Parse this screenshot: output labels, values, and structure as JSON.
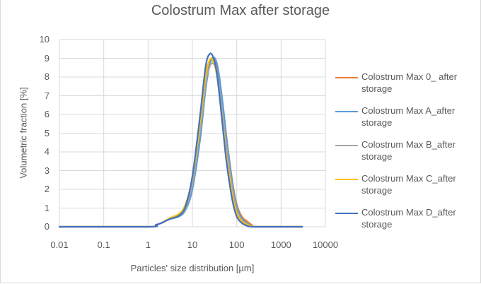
{
  "chart_data": {
    "type": "line",
    "title": "Colostrum Max after storage",
    "xlabel": "Particles' size distribution [µm]",
    "ylabel": "Volumetric fraction [%]",
    "xscale": "log",
    "xlim": [
      0.01,
      10000
    ],
    "ylim": [
      0,
      10
    ],
    "x_ticks": [
      "0.01",
      "0.1",
      "1",
      "10",
      "100",
      "1000",
      "10000"
    ],
    "y_ticks": [
      "0",
      "1",
      "2",
      "3",
      "4",
      "5",
      "6",
      "7",
      "8",
      "9",
      "10"
    ],
    "grid": true,
    "legend_position": "right",
    "series": [
      {
        "name": "Colostrum Max 0_ after storage",
        "color": "#ED7D31",
        "x": [
          0.01,
          1,
          1.5,
          2,
          3,
          5,
          7,
          10,
          15,
          20,
          25,
          30,
          35,
          40,
          50,
          60,
          80,
          100,
          130,
          170,
          220,
          300,
          3000
        ],
        "y": [
          0,
          0,
          0.1,
          0.2,
          0.4,
          0.6,
          1.0,
          2.2,
          5.0,
          7.6,
          8.8,
          9.0,
          8.7,
          8.0,
          6.2,
          4.6,
          2.4,
          1.2,
          0.55,
          0.3,
          0.1,
          0,
          0
        ]
      },
      {
        "name": "Colostrum Max A_after storage",
        "color": "#5B9BD5",
        "x": [
          0.01,
          1,
          1.5,
          2,
          3,
          5,
          7,
          10,
          15,
          20,
          25,
          30,
          35,
          40,
          50,
          60,
          80,
          100,
          130,
          170,
          220,
          300,
          3000
        ],
        "y": [
          0,
          0,
          0.1,
          0.2,
          0.4,
          0.55,
          0.9,
          2.0,
          4.7,
          7.4,
          8.7,
          9.05,
          8.8,
          8.1,
          6.3,
          4.6,
          2.3,
          1.1,
          0.45,
          0.2,
          0.05,
          0,
          0
        ]
      },
      {
        "name": "Colostrum Max B_after storage",
        "color": "#A5A5A5",
        "x": [
          0.01,
          1,
          1.5,
          2,
          3,
          5,
          7,
          10,
          15,
          20,
          25,
          30,
          35,
          40,
          50,
          60,
          80,
          100,
          130,
          170,
          220,
          300,
          3000
        ],
        "y": [
          0,
          0,
          0.1,
          0.2,
          0.4,
          0.6,
          1.0,
          2.3,
          5.2,
          7.7,
          8.6,
          8.7,
          8.3,
          7.5,
          5.7,
          4.1,
          2.0,
          0.9,
          0.35,
          0.15,
          0.05,
          0,
          0
        ]
      },
      {
        "name": "Colostrum Max C_after storage",
        "color": "#FFC000",
        "x": [
          0.01,
          1,
          1.5,
          2,
          3,
          5,
          7,
          10,
          15,
          20,
          25,
          30,
          35,
          40,
          50,
          60,
          80,
          100,
          130,
          170,
          220,
          300,
          3000
        ],
        "y": [
          0,
          0,
          0.1,
          0.2,
          0.45,
          0.7,
          1.2,
          2.6,
          5.6,
          8.1,
          8.95,
          8.8,
          8.2,
          7.2,
          5.2,
          3.6,
          1.7,
          0.75,
          0.3,
          0.12,
          0.03,
          0,
          0
        ]
      },
      {
        "name": "Colostrum Max D_after storage",
        "color": "#4472C4",
        "x": [
          0.01,
          1,
          1.5,
          2,
          3,
          5,
          7,
          10,
          15,
          20,
          25,
          30,
          35,
          40,
          50,
          60,
          80,
          100,
          130,
          170,
          220,
          300,
          3000
        ],
        "y": [
          0,
          0,
          0.1,
          0.2,
          0.4,
          0.6,
          1.1,
          2.7,
          6.0,
          8.6,
          9.25,
          9.0,
          8.3,
          7.2,
          5.0,
          3.3,
          1.4,
          0.55,
          0.2,
          0.05,
          0,
          0,
          0
        ]
      }
    ]
  }
}
